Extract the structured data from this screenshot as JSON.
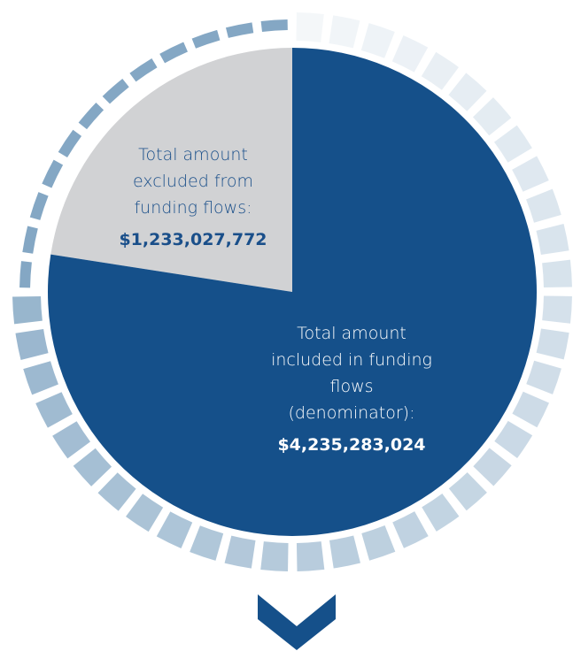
{
  "chart_data": {
    "type": "pie",
    "categories": [
      "Total amount excluded from funding flows:",
      "Total amount included in funding flows (denominator):"
    ],
    "values": [
      1233027772,
      4235283024
    ],
    "value_labels": [
      "$1,233,027,772",
      "$4,235,283,024"
    ],
    "colors": [
      "#d1d2d4",
      "#15508a"
    ],
    "label_colors": [
      "#1a4f8a",
      "#ffffff"
    ]
  }
}
